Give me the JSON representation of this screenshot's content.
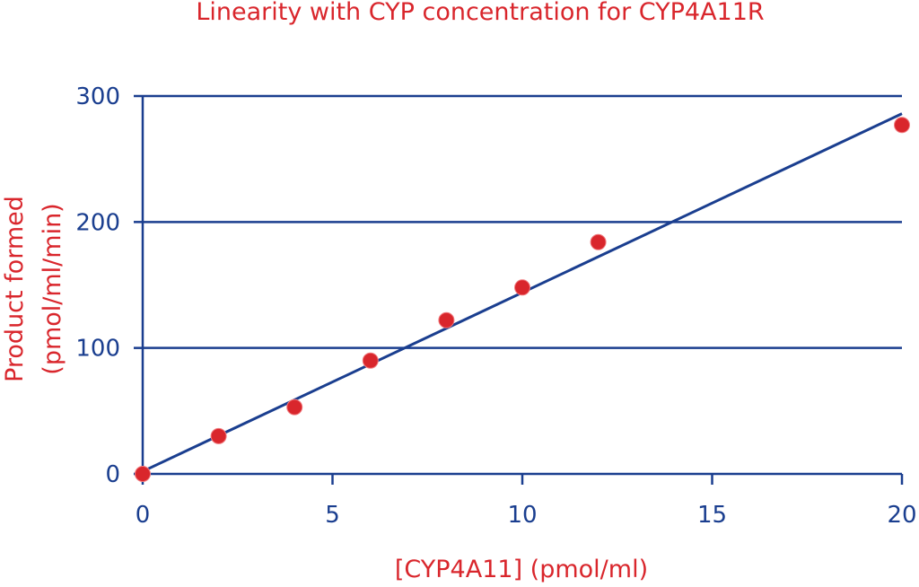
{
  "chart_data": {
    "type": "scatter",
    "title": "Linearity with CYP concentration for CYP4A11R",
    "xlabel": "[CYP4A11] (pmol/ml)",
    "ylabel_line1": "Product formed",
    "ylabel_line2": "(pmol/ml/min)",
    "xlim": [
      0,
      20
    ],
    "ylim": [
      0,
      300
    ],
    "x_ticks": [
      0,
      5,
      10,
      15,
      20
    ],
    "y_ticks": [
      0,
      100,
      200,
      300
    ],
    "grid": "horizontal",
    "points": [
      {
        "x": 0,
        "y": 0
      },
      {
        "x": 2,
        "y": 30
      },
      {
        "x": 4,
        "y": 53
      },
      {
        "x": 6,
        "y": 90
      },
      {
        "x": 8,
        "y": 122
      },
      {
        "x": 10,
        "y": 148
      },
      {
        "x": 12,
        "y": 184
      },
      {
        "x": 20,
        "y": 277
      }
    ],
    "fit_line": {
      "x": [
        0,
        20
      ],
      "y": [
        2,
        286
      ]
    },
    "colors": {
      "axis": "#1a3e8f",
      "grid": "#1a3e8f",
      "fit_line": "#1a3e8f",
      "points": "#d9262c",
      "text": "#d9262c"
    }
  }
}
